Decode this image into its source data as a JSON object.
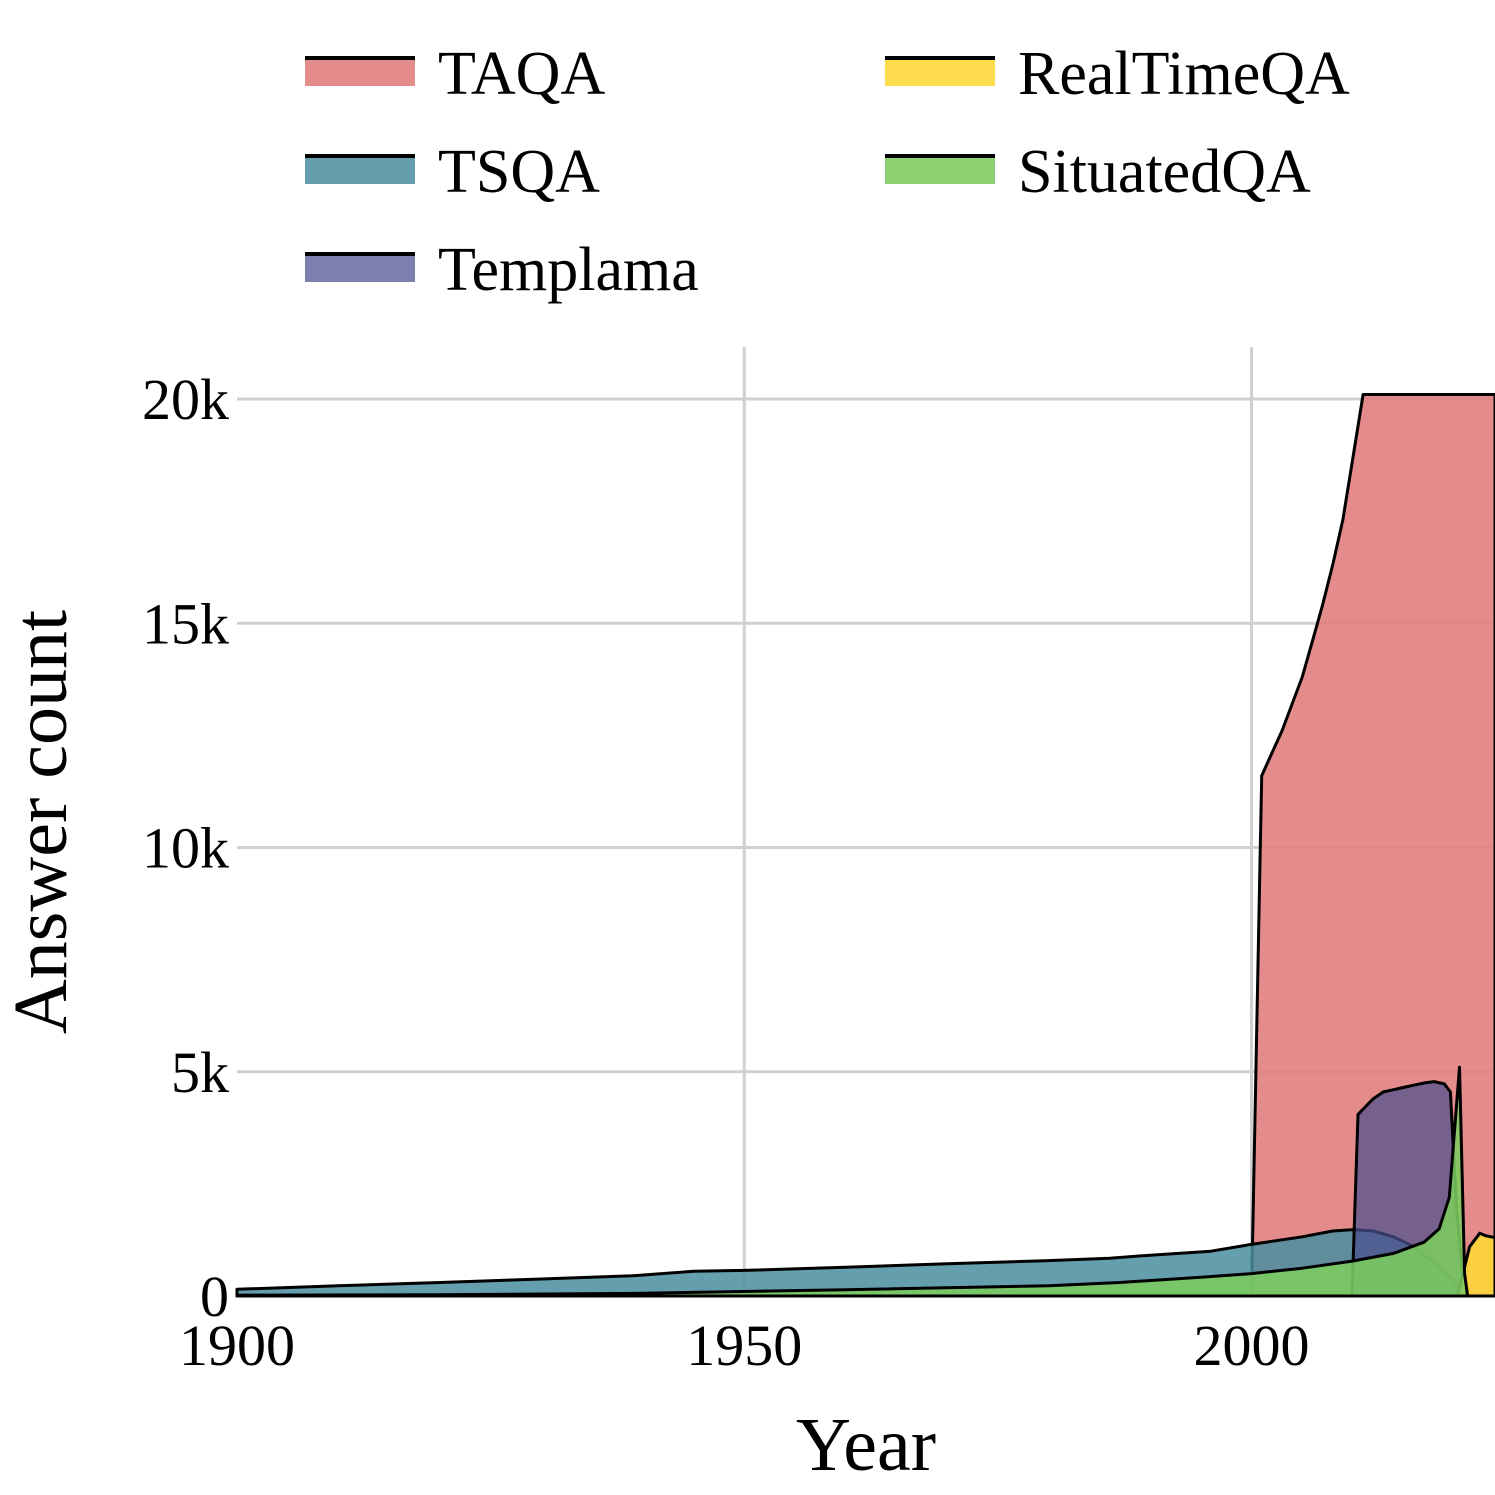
{
  "chart_data": {
    "type": "area",
    "title": "",
    "xlabel": "Year",
    "ylabel": "Answer count",
    "xlim": [
      1900,
      2024
    ],
    "ylim": [
      0,
      21000
    ],
    "grid": true,
    "legend_position": "top",
    "x_ticks": [
      {
        "value": 1900,
        "label": "1900"
      },
      {
        "value": 1950,
        "label": "1950"
      },
      {
        "value": 2000,
        "label": "2000"
      }
    ],
    "y_ticks": [
      {
        "value": 0,
        "label": "0"
      },
      {
        "value": 5000,
        "label": "5k"
      },
      {
        "value": 10000,
        "label": "10k"
      },
      {
        "value": 15000,
        "label": "15k"
      },
      {
        "value": 20000,
        "label": "20k"
      }
    ],
    "series": [
      {
        "name": "TAQA",
        "color": "#e07b7b",
        "opacity": 0.88,
        "x": [
          2000,
          2001,
          2002,
          2003,
          2004,
          2005,
          2006,
          2007,
          2008,
          2009,
          2010,
          2011,
          2012,
          2014,
          2016,
          2018,
          2020,
          2022,
          2024
        ],
        "y": [
          0,
          11600,
          12100,
          12600,
          13200,
          13800,
          14600,
          15400,
          16300,
          17300,
          18700,
          20100,
          20100,
          20100,
          20100,
          20100,
          20100,
          20100,
          20100
        ]
      },
      {
        "name": "TSQA",
        "color": "#4a8ea0",
        "opacity": 0.85,
        "x": [
          1900,
          1910,
          1920,
          1930,
          1939,
          1945,
          1950,
          1960,
          1970,
          1980,
          1986,
          1990,
          1996,
          2000,
          2005,
          2008,
          2010,
          2012,
          2014,
          2016,
          2018,
          2020,
          2021
        ],
        "y": [
          150,
          230,
          300,
          380,
          450,
          550,
          570,
          640,
          720,
          790,
          840,
          910,
          1000,
          1150,
          1320,
          1450,
          1480,
          1450,
          1320,
          1100,
          750,
          350,
          0
        ]
      },
      {
        "name": "Templama",
        "color": "#4b4f8f",
        "opacity": 0.72,
        "x": [
          2009.9,
          2010.5,
          2012,
          2013,
          2014,
          2015,
          2016,
          2017,
          2018,
          2019,
          2019.6,
          2020.2,
          2021
        ],
        "y": [
          0,
          4050,
          4400,
          4550,
          4600,
          4650,
          4700,
          4750,
          4780,
          4730,
          4550,
          2000,
          0
        ]
      },
      {
        "name": "RealTimeQA",
        "color": "#fdd835",
        "opacity": 0.88,
        "x": [
          2020.3,
          2021.5,
          2022.5,
          2023,
          2024
        ],
        "y": [
          0,
          1100,
          1400,
          1350,
          1300
        ]
      },
      {
        "name": "SituatedQA",
        "color": "#7ccc5f",
        "opacity": 0.88,
        "x": [
          1900,
          1920,
          1940,
          1960,
          1980,
          1987,
          1995,
          2000,
          2005,
          2010,
          2014,
          2017,
          2018.5,
          2019.5,
          2020.5,
          2021,
          2021.3
        ],
        "y": [
          20,
          30,
          60,
          140,
          230,
          300,
          420,
          500,
          620,
          780,
          950,
          1200,
          1500,
          2200,
          5100,
          500,
          0
        ]
      }
    ]
  }
}
